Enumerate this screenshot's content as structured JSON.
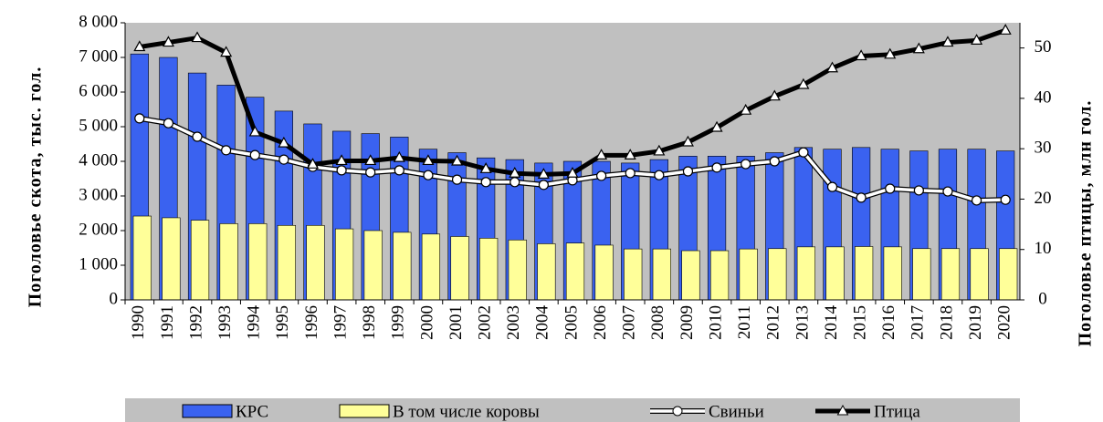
{
  "chart_data": {
    "type": "bar-line",
    "y_axis_label": "Поголовье скота, тыс. гол.",
    "y2_axis_label": "Поголовье птицы, млн гол.",
    "categories": [
      "1990",
      "1991",
      "1992",
      "1993",
      "1994",
      "1995",
      "1996",
      "1997",
      "1998",
      "1999",
      "2000",
      "2001",
      "2002",
      "2003",
      "2004",
      "2005",
      "2006",
      "2007",
      "2008",
      "2009",
      "2010",
      "2011",
      "2012",
      "2013",
      "2014",
      "2015",
      "2016",
      "2017",
      "2018",
      "2019",
      "2020"
    ],
    "series": [
      {
        "name": "КРС",
        "kind": "bar",
        "color": "#3a62f0",
        "values": [
          7100,
          7000,
          6550,
          6200,
          5850,
          5450,
          5080,
          4870,
          4800,
          4700,
          4350,
          4250,
          4100,
          4050,
          3950,
          4000,
          4000,
          3950,
          4050,
          4150,
          4150,
          4150,
          4250,
          4400,
          4350,
          4400,
          4350,
          4300,
          4350,
          4350,
          4300
        ]
      },
      {
        "name": "В том числе коровы",
        "kind": "bar",
        "color": "#ffff99",
        "values": [
          2420,
          2370,
          2300,
          2200,
          2200,
          2150,
          2150,
          2050,
          2000,
          1950,
          1900,
          1830,
          1780,
          1730,
          1620,
          1640,
          1580,
          1470,
          1470,
          1420,
          1420,
          1470,
          1480,
          1530,
          1530,
          1540,
          1530,
          1480,
          1480,
          1480,
          1480
        ]
      },
      {
        "name": "Свиньи",
        "kind": "line",
        "marker": "circle",
        "color": "#ffffff",
        "values": [
          5240,
          5100,
          4710,
          4320,
          4180,
          4050,
          3840,
          3740,
          3680,
          3740,
          3600,
          3470,
          3400,
          3400,
          3320,
          3450,
          3580,
          3660,
          3600,
          3710,
          3820,
          3920,
          4000,
          4260,
          3260,
          2950,
          3210,
          3160,
          3130,
          2870,
          2890
        ]
      },
      {
        "name": "Птица",
        "kind": "line",
        "marker": "triangle",
        "color": "#000000",
        "axis": "y2",
        "values": [
          50.2,
          51.1,
          52.0,
          49.1,
          33.3,
          31.1,
          26.9,
          27.6,
          27.6,
          28.2,
          27.6,
          27.5,
          26.0,
          25.1,
          24.9,
          25.1,
          28.7,
          28.7,
          29.5,
          31.3,
          34.2,
          37.6,
          40.4,
          42.7,
          46.0,
          48.4,
          48.7,
          49.8,
          51.1,
          51.5,
          53.5
        ]
      }
    ],
    "ylim": [
      0,
      8000
    ],
    "yticks": [
      0,
      {
        "value": 1000,
        "label": "1 000"
      },
      {
        "value": 2000,
        "label": "2 000"
      },
      {
        "value": 3000,
        "label": "3 000"
      },
      {
        "value": 4000,
        "label": "4 000"
      },
      {
        "value": 5000,
        "label": "5 000"
      },
      {
        "value": 6000,
        "label": "6 000"
      },
      {
        "value": 7000,
        "label": "7 000"
      },
      {
        "value": 8000,
        "label": "8 000"
      }
    ],
    "y2lim": [
      0,
      55
    ],
    "y2ticks": [
      0,
      10,
      20,
      30,
      40,
      50
    ],
    "plot_background": "#c0c0c0",
    "legend": "bottom"
  }
}
